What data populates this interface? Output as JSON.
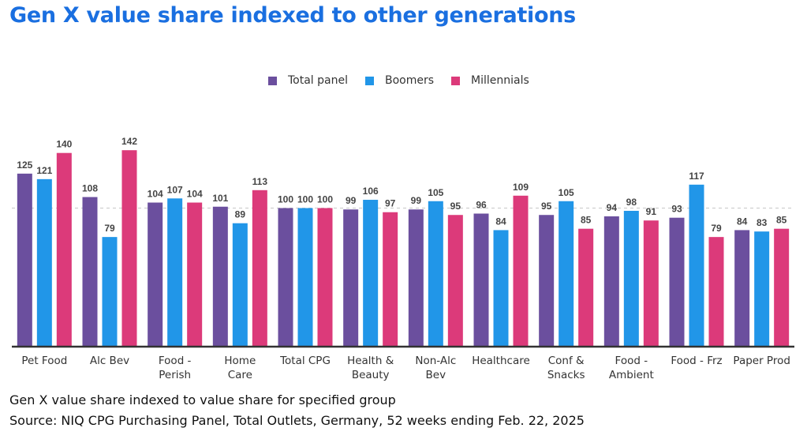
{
  "title": "Gen X value share indexed to other generations",
  "footnote": "Gen X value share indexed to value share for specified group",
  "source": "Source: NIQ CPG Purchasing Panel, Total Outlets, Germany, 52 weeks ending Feb. 22, 2025",
  "colors": {
    "title": "#1a6fe0",
    "total_panel": "#6b4f9e",
    "boomers": "#2196e8",
    "millennials": "#dc3a7a"
  },
  "chart_data": {
    "type": "bar",
    "categories": [
      [
        "Pet Food"
      ],
      [
        "Alc Bev"
      ],
      [
        "Food -",
        "Perish"
      ],
      [
        "Home",
        "Care"
      ],
      [
        "Total CPG"
      ],
      [
        "Health &",
        "Beauty"
      ],
      [
        "Non-Alc",
        "Bev"
      ],
      [
        "Healthcare"
      ],
      [
        "Conf &",
        "Snacks"
      ],
      [
        "Food -",
        "Ambient"
      ],
      [
        "Food - Frz"
      ],
      [
        "Paper Prod"
      ]
    ],
    "series": [
      {
        "name": "Total panel",
        "color": "#6b4f9e",
        "values": [
          125,
          108,
          104,
          101,
          100,
          99,
          99,
          96,
          95,
          94,
          93,
          84
        ]
      },
      {
        "name": "Boomers",
        "color": "#2196e8",
        "values": [
          121,
          79,
          107,
          89,
          100,
          106,
          105,
          84,
          105,
          98,
          117,
          83
        ]
      },
      {
        "name": "Millennials",
        "color": "#dc3a7a",
        "values": [
          140,
          142,
          104,
          113,
          100,
          97,
          95,
          109,
          85,
          91,
          79,
          85
        ]
      }
    ],
    "reference_line": 100,
    "legend_position": "top-center",
    "data_labels": true,
    "grid": false
  }
}
